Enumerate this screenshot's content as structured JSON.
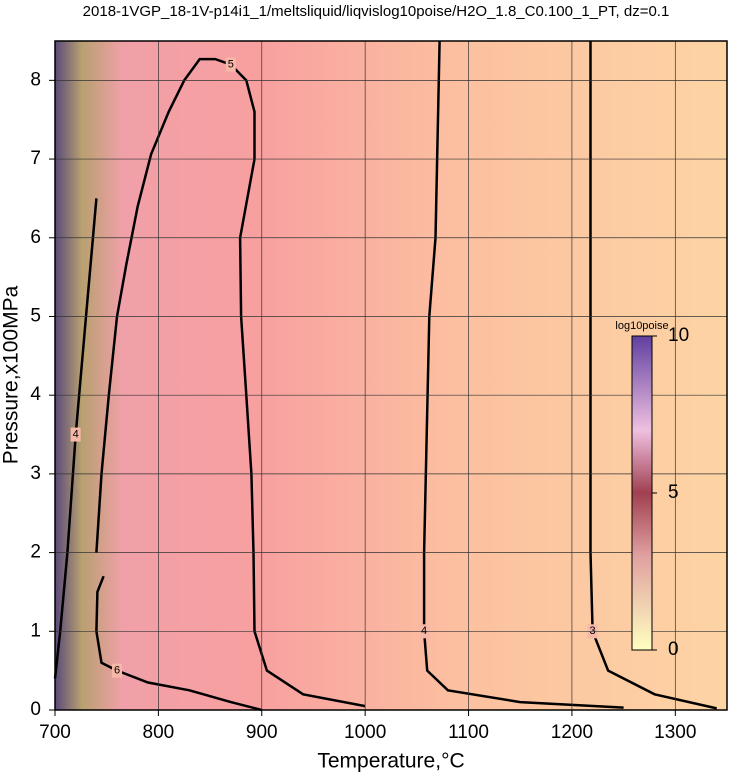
{
  "chart_data": {
    "type": "contour",
    "title": "2018-1VGP_18-1V-p14i1_1/meltsliquid/liqvislog10poise/H2O_1.8_C0.100_1_PT, dz=0.1",
    "x_label": "Temperature,°C",
    "y_label": "Pressure,x100MPa",
    "xlim": [
      700,
      1350
    ],
    "ylim": [
      0,
      8.5
    ],
    "xticks": [
      700,
      800,
      900,
      1000,
      1100,
      1200,
      1300
    ],
    "yticks": [
      0,
      1,
      2,
      3,
      4,
      5,
      6,
      7,
      8
    ],
    "grid": true,
    "colorbar": {
      "label": "log10poise",
      "lim": [
        0,
        10
      ],
      "ticks": [
        0,
        5,
        10
      ]
    },
    "contours": [
      {
        "level": 3,
        "x": [
          1218,
          1218,
          1218,
          1218,
          1220,
          1235,
          1280,
          1340
        ],
        "y": [
          8.5,
          6,
          5,
          2,
          1,
          0.5,
          0.2,
          0.02
        ]
      },
      {
        "level": 4,
        "x": [
          1072,
          1068,
          1062,
          1057,
          1057,
          1060,
          1080,
          1150,
          1250
        ],
        "y": [
          8.5,
          6,
          5,
          2,
          1,
          0.5,
          0.25,
          0.1,
          0.03
        ]
      },
      {
        "level": 5,
        "x": [
          1000,
          940,
          905,
          893,
          892,
          890,
          885,
          880,
          879,
          893,
          893,
          885,
          870,
          855,
          840,
          825,
          810,
          793,
          780,
          769,
          760,
          752,
          745,
          740
        ],
        "y": [
          0.05,
          0.2,
          0.5,
          1,
          2,
          3,
          4,
          5,
          6,
          7,
          7.6,
          8.0,
          8.2,
          8.27,
          8.27,
          8.0,
          7.6,
          7.06,
          6.4,
          5.66,
          5,
          4,
          3,
          2
        ]
      },
      {
        "level": 6,
        "x": [
          900,
          870,
          830,
          790,
          760,
          745,
          740,
          741,
          747
        ],
        "y": [
          0,
          0.1,
          0.25,
          0.35,
          0.5,
          0.6,
          1,
          1.5,
          1.7
        ]
      },
      {
        "level": 4,
        "x": [
          700,
          705,
          712,
          720,
          730,
          740
        ],
        "y": [
          0.4,
          1,
          2,
          3.5,
          5,
          6.5
        ]
      }
    ]
  }
}
